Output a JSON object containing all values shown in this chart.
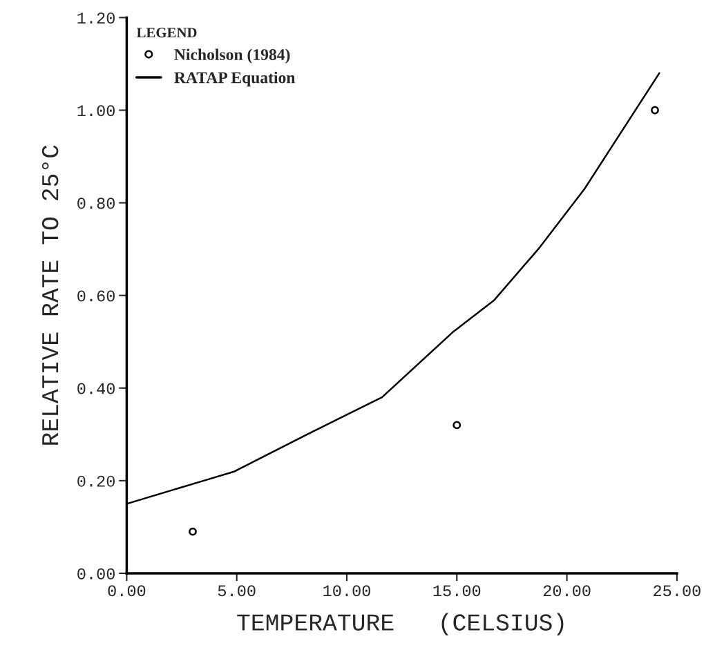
{
  "chart_data": {
    "type": "scatter",
    "xlabel": "TEMPERATURE   (CELSIUS)",
    "ylabel": "RELATIVE RATE TO 25°C",
    "legend_title": "LEGEND",
    "legend": "top left",
    "grid": false,
    "xlim": [
      0,
      25
    ],
    "xticks": [
      {
        "value": 0,
        "label": "0.00"
      },
      {
        "value": 5,
        "label": "5.00"
      },
      {
        "value": 10,
        "label": "10.00"
      },
      {
        "value": 15,
        "label": "15.00"
      },
      {
        "value": 20,
        "label": "20.00"
      },
      {
        "value": 25,
        "label": "25.00"
      }
    ],
    "ylim": [
      0,
      1.2
    ],
    "yticks": [
      {
        "value": 0,
        "label": "0.00"
      },
      {
        "value": 0.2,
        "label": "0.20"
      },
      {
        "value": 0.4,
        "label": "0.40"
      },
      {
        "value": 0.6,
        "label": "0.60"
      },
      {
        "value": 0.8,
        "label": "0.80"
      },
      {
        "value": 1.0,
        "label": "1.00"
      },
      {
        "value": 1.2,
        "label": "1.20"
      }
    ],
    "series": [
      {
        "name": "Nicholson (1984)",
        "marker": "circle",
        "color": "#000000",
        "x": [
          3,
          15,
          24
        ],
        "values": [
          0.09,
          0.32,
          1.0
        ]
      },
      {
        "name": "RATAP Equation",
        "type": "line",
        "marker": "none",
        "line_style": "solid",
        "color": "#000000",
        "x": [
          0,
          3.5,
          4.9,
          8.2,
          11.6,
          14.8,
          16.7,
          18.7,
          20.8,
          24.2
        ],
        "values": [
          0.15,
          0.2,
          0.22,
          0.3,
          0.38,
          0.52,
          0.59,
          0.7,
          0.83,
          1.08
        ]
      }
    ]
  }
}
